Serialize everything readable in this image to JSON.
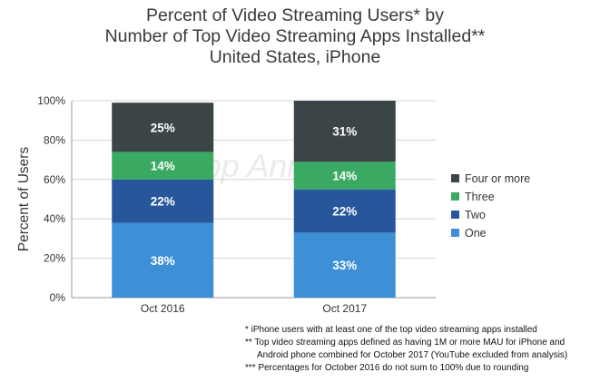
{
  "chart_data": {
    "type": "bar",
    "stacked": true,
    "title_lines": [
      "Percent of Video Streaming Users* by",
      "Number of Top Video Streaming Apps Installed**",
      "United States, iPhone"
    ],
    "ylabel": "Percent of Users",
    "xlabel": "",
    "ylim": [
      0,
      100
    ],
    "yticks": [
      "0%",
      "20%",
      "40%",
      "60%",
      "80%",
      "100%"
    ],
    "categories": [
      "Oct 2016",
      "Oct 2017"
    ],
    "series": [
      {
        "name": "One",
        "values": [
          38,
          33
        ],
        "labels": [
          "38%",
          "33%"
        ],
        "color": "#3d8fd6"
      },
      {
        "name": "Two",
        "values": [
          22,
          22
        ],
        "labels": [
          "22%",
          "22%"
        ],
        "color": "#27569b"
      },
      {
        "name": "Three",
        "values": [
          14,
          14
        ],
        "labels": [
          "14%",
          "14%"
        ],
        "color": "#3aaa63"
      },
      {
        "name": "Four or more",
        "values": [
          25,
          31
        ],
        "labels": [
          "25%",
          "31%"
        ],
        "color": "#3b4446"
      }
    ],
    "legend_order": [
      "Four or more",
      "Three",
      "Two",
      "One"
    ],
    "legend_position": "right",
    "grid": true,
    "watermark": "App Annie"
  },
  "footnotes": [
    "* iPhone users with at least one of the top video streaming apps installed",
    "** Top video streaming apps defined as having 1M or more MAU for iPhone and",
    "Android phone combined for October 2017 (YouTube excluded from analysis)",
    "*** Percentages for October 2016 do not sum to 100% due to rounding"
  ]
}
